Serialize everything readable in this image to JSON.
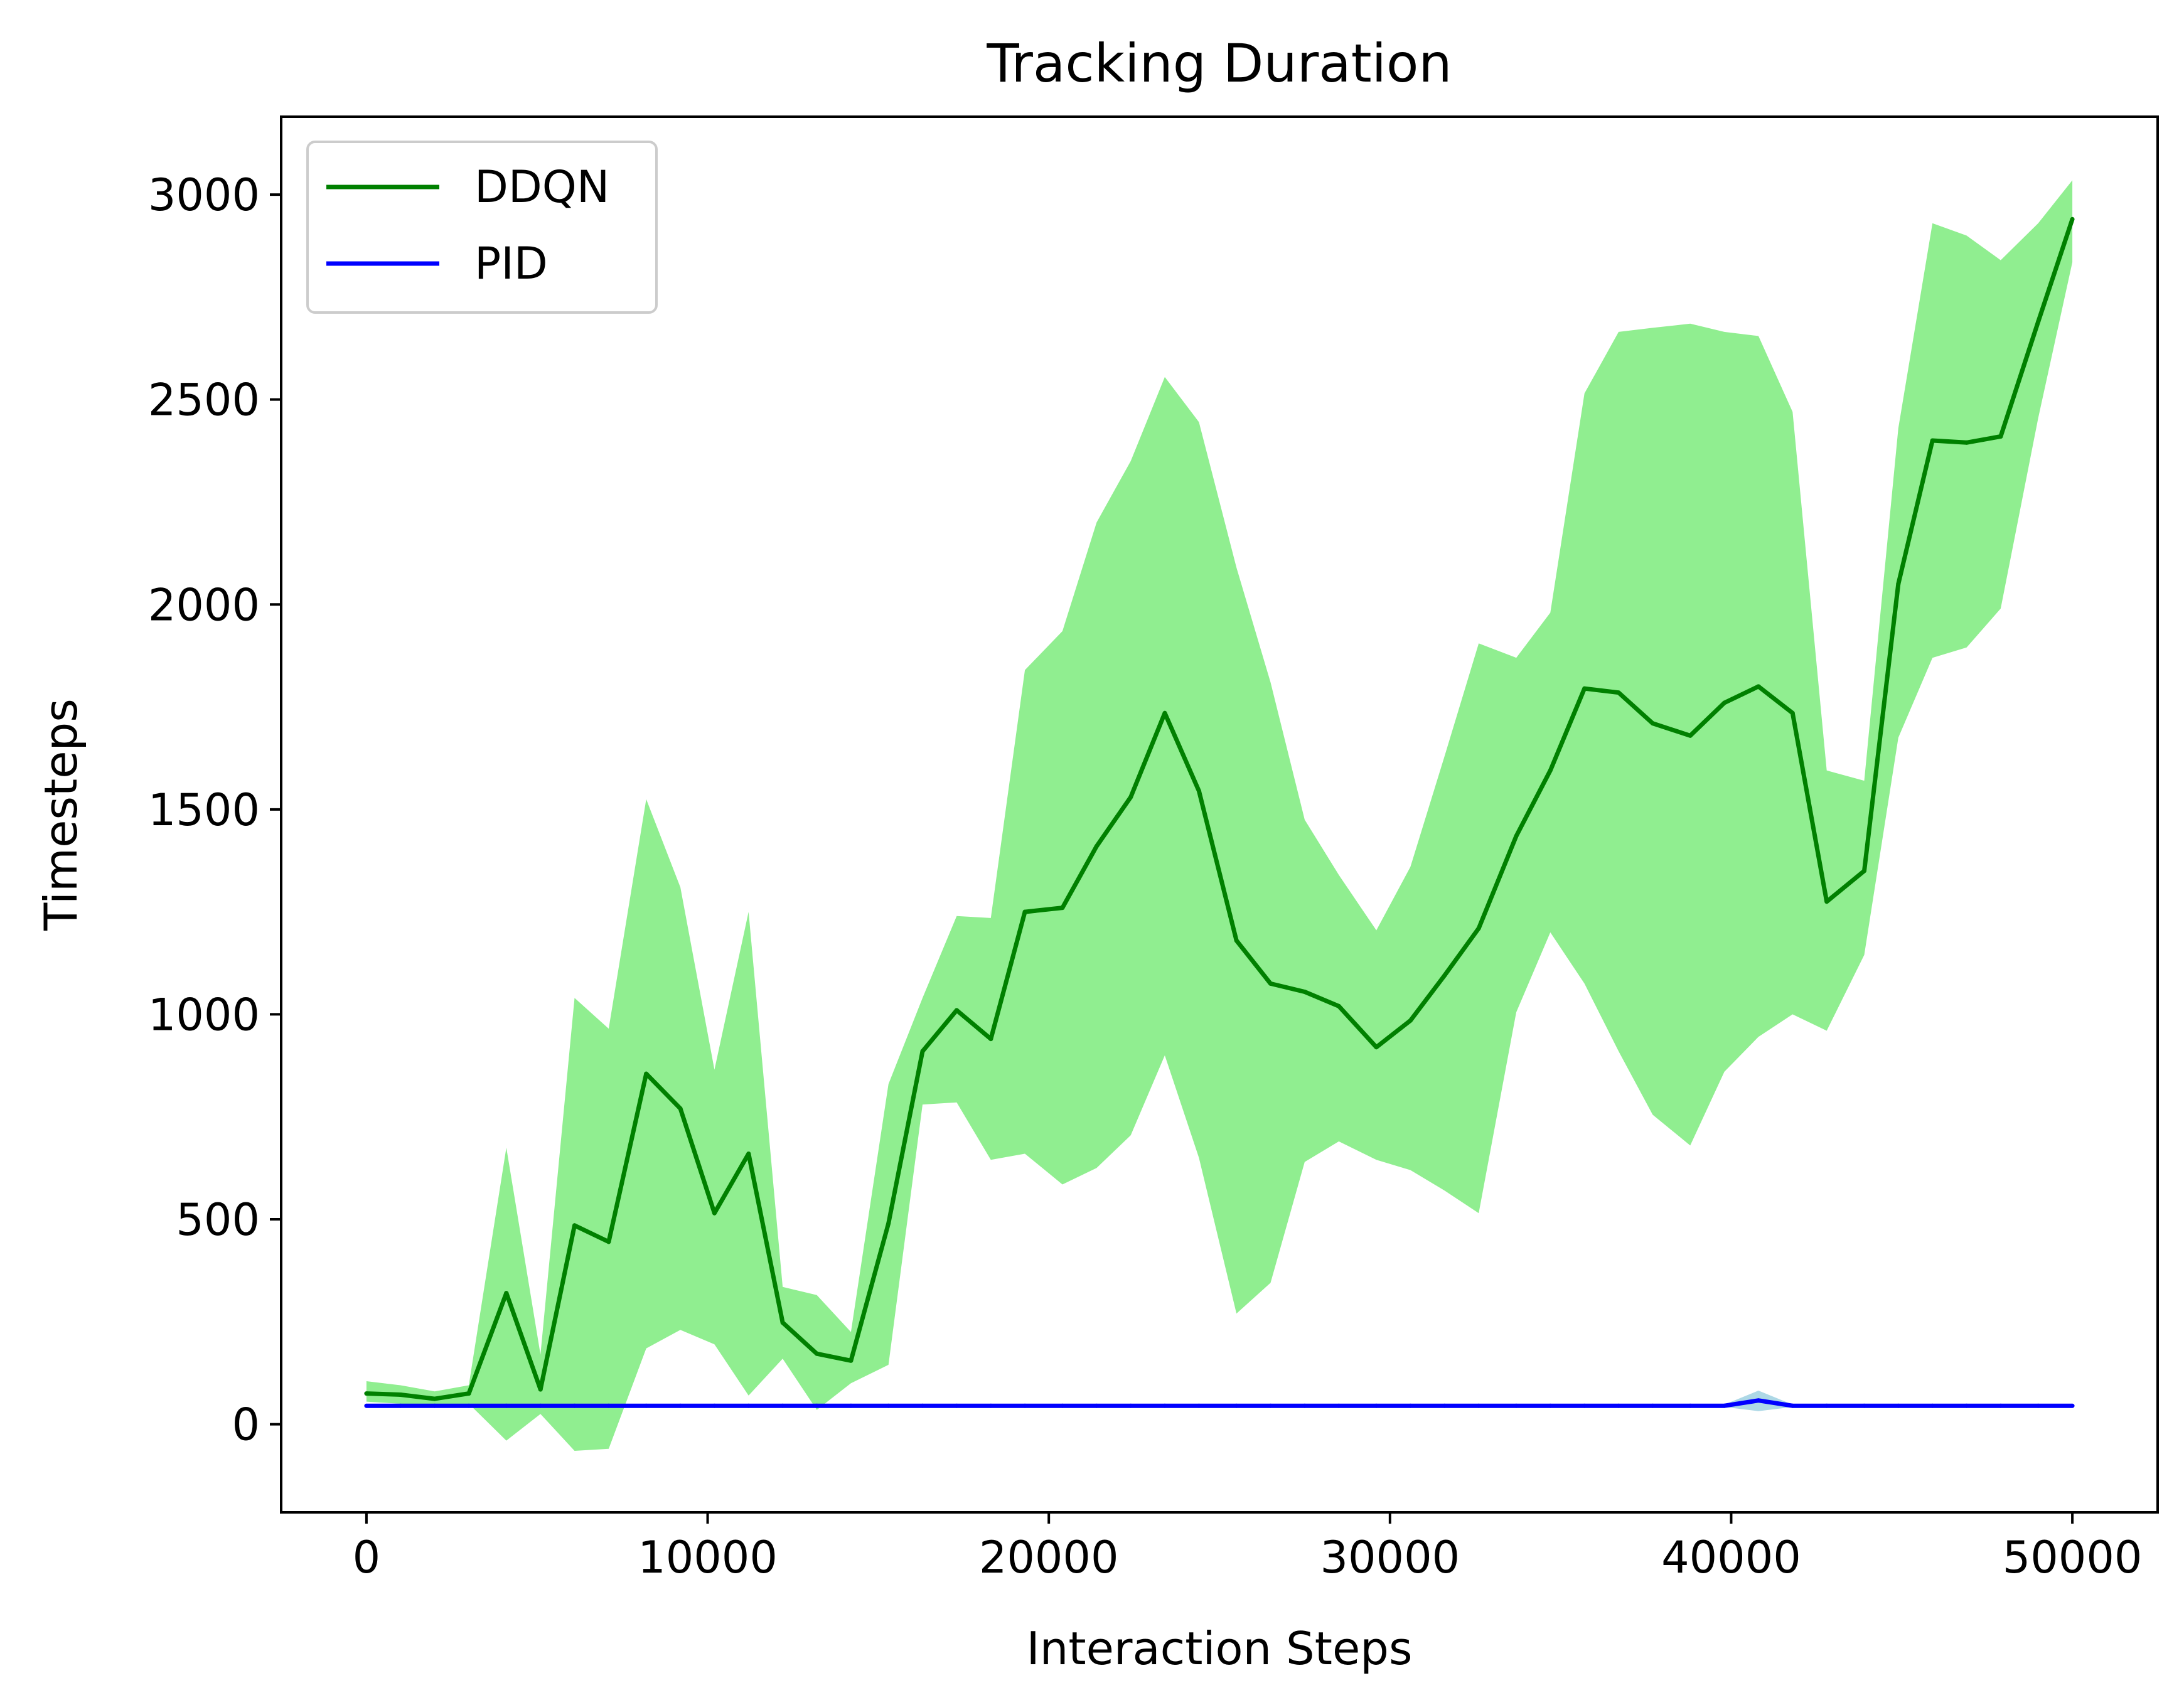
{
  "chart_data": {
    "type": "line",
    "title": "Tracking Duration",
    "xlabel": "Interaction Steps",
    "ylabel": "Timesteps",
    "xlim": [
      -2500,
      52500
    ],
    "ylim": [
      -215,
      3190
    ],
    "xticks": [
      0,
      10000,
      20000,
      30000,
      40000,
      50000
    ],
    "xtick_labels": [
      "0",
      "10000",
      "20000",
      "30000",
      "40000",
      "50000"
    ],
    "yticks": [
      0,
      500,
      1000,
      1500,
      2000,
      2500,
      3000
    ],
    "ytick_labels": [
      "0",
      "500",
      "1000",
      "1500",
      "2000",
      "2500",
      "3000"
    ],
    "grid": false,
    "legend_position": "upper-left",
    "x": [
      0,
      1000,
      2000,
      3000,
      4100,
      5100,
      6100,
      7100,
      8200,
      9200,
      10200,
      11200,
      12200,
      13200,
      14200,
      15300,
      16300,
      17300,
      18300,
      19300,
      20400,
      21400,
      22400,
      23400,
      24400,
      25500,
      26500,
      27500,
      28500,
      29600,
      30600,
      31600,
      32600,
      33700,
      34700,
      35700,
      36700,
      37700,
      38800,
      39800,
      40800,
      41800,
      42800,
      43900,
      44900,
      45900,
      46900,
      47900,
      49000,
      50000
    ],
    "series": [
      {
        "name": "DDQN",
        "color": "#008000",
        "band_color": "#90ee90",
        "values": [
          75,
          72,
          62,
          75,
          320,
          85,
          485,
          445,
          855,
          770,
          515,
          660,
          248,
          172,
          155,
          490,
          910,
          1010,
          940,
          1250,
          1260,
          1410,
          1530,
          1735,
          1545,
          1180,
          1075,
          1055,
          1020,
          920,
          985,
          1095,
          1210,
          1435,
          1595,
          1795,
          1785,
          1710,
          1680,
          1760,
          1800,
          1735,
          1275,
          1350,
          2050,
          2400,
          2395,
          2410,
          2690,
          2940
        ],
        "upper": [
          105,
          95,
          80,
          95,
          675,
          170,
          1040,
          965,
          1525,
          1310,
          865,
          1250,
          335,
          315,
          225,
          830,
          1040,
          1240,
          1235,
          1840,
          1935,
          2200,
          2350,
          2555,
          2445,
          2090,
          1810,
          1475,
          1340,
          1205,
          1360,
          1630,
          1905,
          1870,
          1980,
          2515,
          2665,
          2675,
          2685,
          2665,
          2655,
          2470,
          1595,
          1570,
          2430,
          2930,
          2900,
          2840,
          2930,
          3035
        ],
        "lower": [
          55,
          50,
          45,
          50,
          -40,
          25,
          -65,
          -60,
          185,
          230,
          195,
          70,
          160,
          35,
          100,
          145,
          780,
          785,
          645,
          660,
          585,
          625,
          705,
          900,
          650,
          270,
          345,
          640,
          690,
          645,
          620,
          570,
          515,
          1005,
          1200,
          1075,
          910,
          755,
          680,
          860,
          945,
          1000,
          960,
          1145,
          1675,
          1870,
          1895,
          1990,
          2455,
          2835
        ]
      },
      {
        "name": "PID",
        "color": "#0000ff",
        "band_color": "#add8e6",
        "values": [
          45,
          45,
          45,
          45,
          45,
          45,
          45,
          45,
          45,
          45,
          45,
          45,
          45,
          45,
          45,
          45,
          45,
          45,
          45,
          45,
          45,
          45,
          45,
          45,
          45,
          45,
          45,
          45,
          45,
          45,
          45,
          45,
          45,
          45,
          45,
          45,
          45,
          45,
          45,
          45,
          58,
          45,
          45,
          45,
          45,
          45,
          45,
          45,
          45,
          45
        ],
        "upper": [
          48,
          48,
          48,
          48,
          48,
          48,
          48,
          48,
          48,
          48,
          48,
          48,
          48,
          48,
          48,
          48,
          48,
          48,
          48,
          48,
          48,
          48,
          48,
          48,
          48,
          48,
          48,
          48,
          48,
          48,
          48,
          48,
          48,
          48,
          48,
          48,
          48,
          48,
          48,
          48,
          82,
          48,
          48,
          48,
          48,
          48,
          48,
          48,
          48,
          48
        ],
        "lower": [
          42,
          42,
          42,
          42,
          42,
          42,
          42,
          42,
          42,
          42,
          42,
          42,
          42,
          42,
          42,
          42,
          42,
          42,
          42,
          42,
          42,
          42,
          42,
          42,
          42,
          42,
          42,
          42,
          42,
          42,
          42,
          42,
          42,
          42,
          42,
          42,
          42,
          42,
          42,
          42,
          32,
          42,
          42,
          42,
          42,
          42,
          42,
          42,
          42,
          42
        ]
      }
    ]
  }
}
